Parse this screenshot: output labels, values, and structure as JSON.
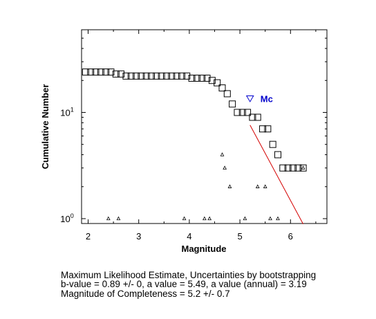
{
  "chart_data": {
    "type": "scatter",
    "xlabel": "Magnitude",
    "ylabel": "Cumulative Number",
    "xlim": [
      1.87,
      6.72
    ],
    "ylim": [
      0.9,
      60
    ],
    "yscale": "log",
    "xticks": [
      2,
      3,
      4,
      5,
      6
    ],
    "yticks": [
      {
        "value": 1,
        "base": "10",
        "exp": "0"
      },
      {
        "value": 10,
        "base": "10",
        "exp": "1"
      }
    ],
    "grid": false,
    "series": [
      {
        "marker": "open-square",
        "points": [
          [
            1.95,
            24
          ],
          [
            2.05,
            24
          ],
          [
            2.15,
            24
          ],
          [
            2.25,
            24
          ],
          [
            2.35,
            24
          ],
          [
            2.45,
            24
          ],
          [
            2.55,
            23
          ],
          [
            2.65,
            23
          ],
          [
            2.75,
            22
          ],
          [
            2.85,
            22
          ],
          [
            2.95,
            22
          ],
          [
            3.05,
            22
          ],
          [
            3.15,
            22
          ],
          [
            3.25,
            22
          ],
          [
            3.35,
            22
          ],
          [
            3.45,
            22
          ],
          [
            3.55,
            22
          ],
          [
            3.65,
            22
          ],
          [
            3.75,
            22
          ],
          [
            3.85,
            22
          ],
          [
            3.95,
            22
          ],
          [
            4.05,
            21
          ],
          [
            4.15,
            21
          ],
          [
            4.25,
            21
          ],
          [
            4.35,
            21
          ],
          [
            4.45,
            20
          ],
          [
            4.55,
            19
          ],
          [
            4.65,
            17
          ],
          [
            4.75,
            15
          ],
          [
            4.85,
            12
          ],
          [
            4.95,
            10
          ],
          [
            5.05,
            10
          ],
          [
            5.15,
            10
          ],
          [
            5.25,
            9
          ],
          [
            5.35,
            9
          ],
          [
            5.45,
            7
          ],
          [
            5.55,
            7
          ],
          [
            5.65,
            5
          ],
          [
            5.75,
            4
          ],
          [
            5.85,
            3
          ],
          [
            5.95,
            3
          ],
          [
            6.05,
            3
          ],
          [
            6.15,
            3
          ],
          [
            6.25,
            3
          ]
        ]
      },
      {
        "marker": "small-triangle",
        "points": [
          [
            2.4,
            1
          ],
          [
            2.6,
            1
          ],
          [
            3.9,
            1
          ],
          [
            4.3,
            1
          ],
          [
            4.4,
            1
          ],
          [
            4.65,
            4
          ],
          [
            4.7,
            3
          ],
          [
            4.8,
            2
          ],
          [
            5.1,
            1
          ],
          [
            5.35,
            2
          ],
          [
            5.5,
            2
          ],
          [
            5.6,
            1
          ],
          [
            5.75,
            1
          ],
          [
            6.25,
            3
          ]
        ]
      },
      {
        "marker": "line",
        "color": "#d40000",
        "points": [
          [
            5.2,
            7.6
          ],
          [
            6.25,
            0.89
          ]
        ]
      },
      {
        "name": "Mc",
        "marker": "inverted-triangle",
        "color": "#0000cc",
        "points": [
          [
            5.2,
            13.5
          ]
        ]
      }
    ]
  },
  "caption": {
    "line1": "Maximum Likelihood Estimate, Uncertainties by bootstrapping",
    "line2": "b-value = 0.89 +/- 0,  a value = 5.49,  a value (annual) = 3.19",
    "line3": "Magnitude of Completeness = 5.2 +/- 0.7"
  }
}
